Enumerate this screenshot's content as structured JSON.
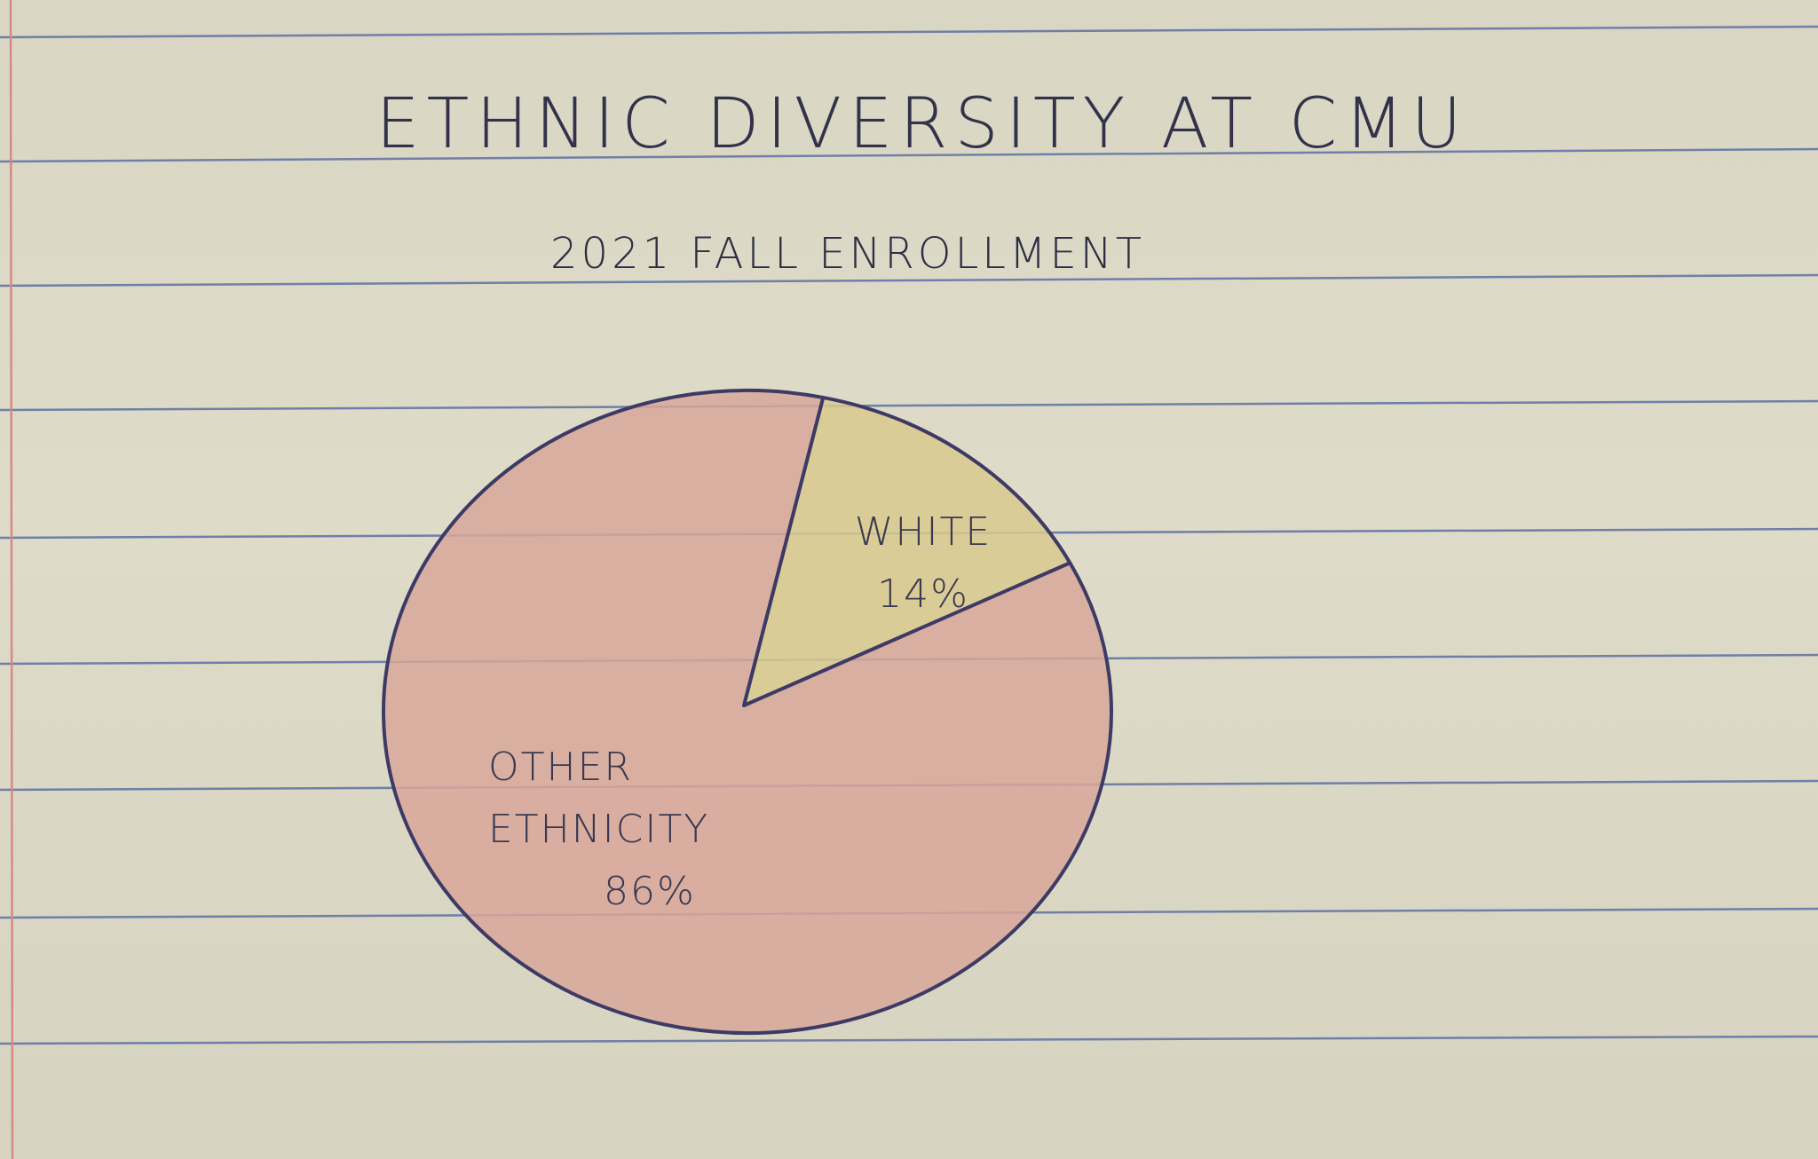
{
  "chart_data": {
    "type": "pie",
    "title": "ETHNIC DIVERSITY AT CMU",
    "subtitle": "2021 FALL ENROLLMENT",
    "slices": [
      {
        "label": "WHITE",
        "value": 14,
        "value_label": "14%",
        "color": "#d9c98e"
      },
      {
        "label": "OTHER ETHNICITY",
        "value": 86,
        "value_label": "86%",
        "color": "#d8a79a"
      }
    ]
  }
}
